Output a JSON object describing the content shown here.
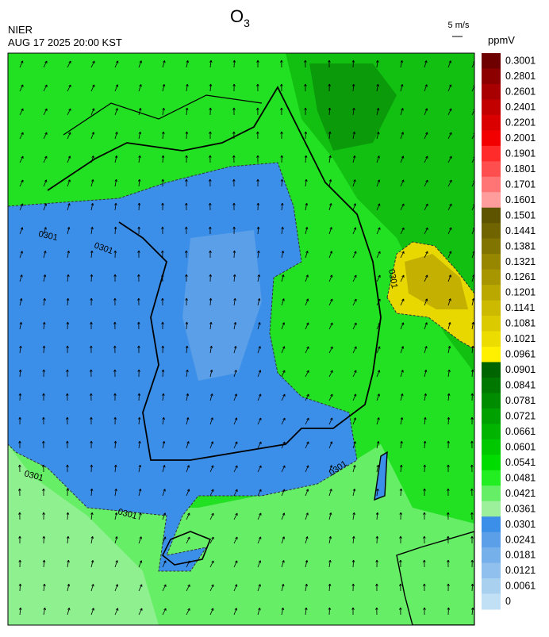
{
  "header": {
    "title": "O",
    "title_sub": "3",
    "agency": "NIER",
    "datetime": "AUG 17 2025 20:00 KST"
  },
  "wind_scale": {
    "label": "5 m/s"
  },
  "colorbar": {
    "unit": "ppmV",
    "levels": [
      {
        "value": 0.3001,
        "color": "#6e0000"
      },
      {
        "value": 0.2801,
        "color": "#8c0000"
      },
      {
        "value": 0.2601,
        "color": "#a80000"
      },
      {
        "value": 0.2401,
        "color": "#c20000"
      },
      {
        "value": 0.2201,
        "color": "#da0000"
      },
      {
        "value": 0.2001,
        "color": "#f20000"
      },
      {
        "value": 0.1901,
        "color": "#ff2a2a"
      },
      {
        "value": 0.1801,
        "color": "#ff4e4e"
      },
      {
        "value": 0.1701,
        "color": "#ff7474"
      },
      {
        "value": 0.1601,
        "color": "#ff9c9c"
      },
      {
        "value": 0.1501,
        "color": "#5e5400"
      },
      {
        "value": 0.1441,
        "color": "#706400"
      },
      {
        "value": 0.1381,
        "color": "#827400"
      },
      {
        "value": 0.1321,
        "color": "#968600"
      },
      {
        "value": 0.1261,
        "color": "#a89600"
      },
      {
        "value": 0.1201,
        "color": "#baa800"
      },
      {
        "value": 0.1141,
        "color": "#ccba00"
      },
      {
        "value": 0.1081,
        "color": "#dcca00"
      },
      {
        "value": 0.1021,
        "color": "#ecdc00"
      },
      {
        "value": 0.0961,
        "color": "#fff000"
      },
      {
        "value": 0.0901,
        "color": "#006400"
      },
      {
        "value": 0.0841,
        "color": "#007800"
      },
      {
        "value": 0.0781,
        "color": "#008c00"
      },
      {
        "value": 0.0721,
        "color": "#00a000"
      },
      {
        "value": 0.0661,
        "color": "#00b400"
      },
      {
        "value": 0.0601,
        "color": "#00c800"
      },
      {
        "value": 0.0541,
        "color": "#00dc00"
      },
      {
        "value": 0.0481,
        "color": "#22ee22"
      },
      {
        "value": 0.0421,
        "color": "#66ee66"
      },
      {
        "value": 0.0361,
        "color": "#9cf09c"
      },
      {
        "value": 0.0301,
        "color": "#3c8fe8"
      },
      {
        "value": 0.0241,
        "color": "#5a9fe8"
      },
      {
        "value": 0.0181,
        "color": "#76b0ea"
      },
      {
        "value": 0.0121,
        "color": "#90c0ee"
      },
      {
        "value": 0.0061,
        "color": "#aad0f0"
      },
      {
        "value": 0,
        "color": "#c2e0f5"
      }
    ]
  },
  "contour_labels": [
    "0301",
    "0301",
    "0301",
    "0301",
    "0301",
    "0301"
  ]
}
